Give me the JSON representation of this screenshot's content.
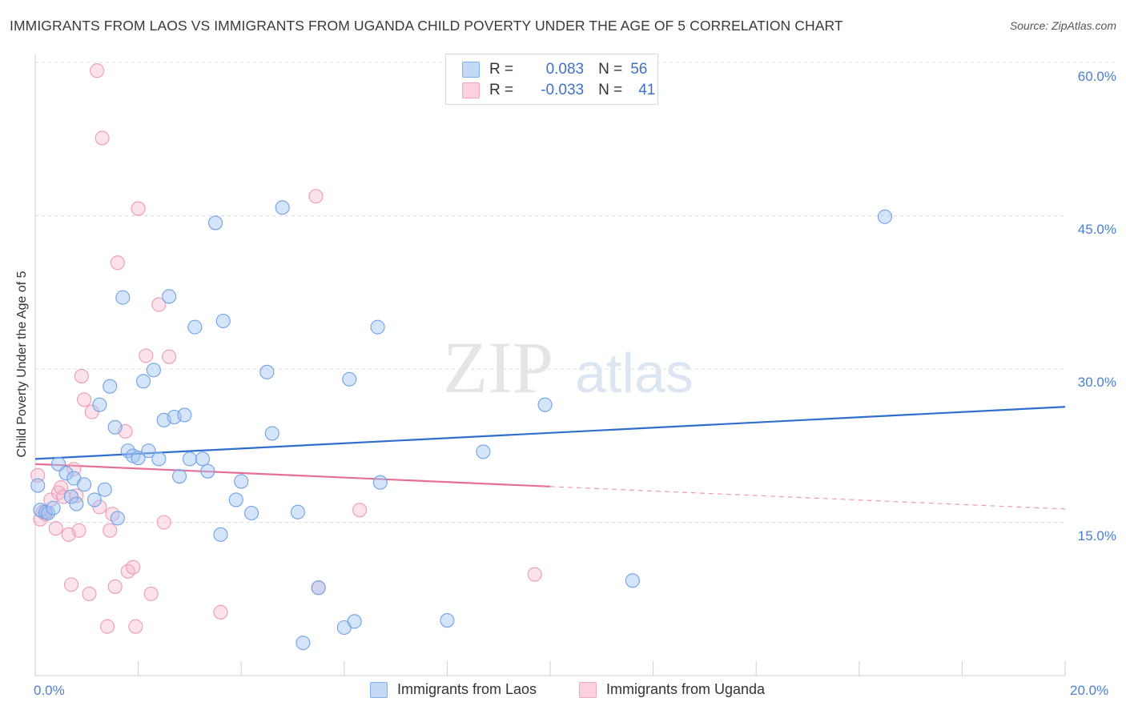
{
  "header": {
    "title": "IMMIGRANTS FROM LAOS VS IMMIGRANTS FROM UGANDA CHILD POVERTY UNDER THE AGE OF 5 CORRELATION CHART",
    "source": "Source: ZipAtlas.com"
  },
  "watermark": {
    "zip": "ZIP",
    "atlas": "atlas"
  },
  "legend": {
    "rows": [
      {
        "r_label": "R =",
        "r_value": "0.083",
        "n_label": "N =",
        "n_value": "56",
        "color": "#7fb0ef"
      },
      {
        "r_label": "R =",
        "r_value": "-0.033",
        "n_label": "N =",
        "n_value": "41",
        "color": "#f4a6bf"
      }
    ]
  },
  "chart_data": {
    "type": "scatter",
    "title": "IMMIGRANTS FROM LAOS VS IMMIGRANTS FROM UGANDA CHILD POVERTY UNDER THE AGE OF 5 CORRELATION CHART",
    "xlabel": "",
    "ylabel": "Child Poverty Under the Age of 5",
    "xlim": [
      0,
      20
    ],
    "ylim": [
      0,
      60
    ],
    "x_tick_labels": [
      "0.0%",
      "20.0%"
    ],
    "y_tick_labels": [
      "15.0%",
      "30.0%",
      "45.0%",
      "60.0%"
    ],
    "y_tick_values": [
      15,
      30,
      45,
      60
    ],
    "grid": "horizontal dashed",
    "legend_position": "bottom",
    "series": [
      {
        "name": "Immigrants from Laos",
        "color": "#7fb0ef",
        "trend": {
          "x": [
            0,
            20
          ],
          "y": [
            21.2,
            26.3
          ],
          "style": "solid"
        },
        "points": [
          [
            0.05,
            18.6
          ],
          [
            0.1,
            16.2
          ],
          [
            0.2,
            16.0
          ],
          [
            0.25,
            15.9
          ],
          [
            0.35,
            16.4
          ],
          [
            0.45,
            20.7
          ],
          [
            0.6,
            19.8
          ],
          [
            0.7,
            17.5
          ],
          [
            0.75,
            19.3
          ],
          [
            0.8,
            16.8
          ],
          [
            0.95,
            18.7
          ],
          [
            1.15,
            17.2
          ],
          [
            1.25,
            26.5
          ],
          [
            1.35,
            18.2
          ],
          [
            1.45,
            28.3
          ],
          [
            1.55,
            24.3
          ],
          [
            1.6,
            15.4
          ],
          [
            1.7,
            37.0
          ],
          [
            1.8,
            22.0
          ],
          [
            1.9,
            21.5
          ],
          [
            2.0,
            21.3
          ],
          [
            2.1,
            28.8
          ],
          [
            2.2,
            22.0
          ],
          [
            2.3,
            29.9
          ],
          [
            2.4,
            21.2
          ],
          [
            2.5,
            25.0
          ],
          [
            2.6,
            37.1
          ],
          [
            2.7,
            25.3
          ],
          [
            2.8,
            19.5
          ],
          [
            2.9,
            25.5
          ],
          [
            3.0,
            21.2
          ],
          [
            3.1,
            34.1
          ],
          [
            3.25,
            21.2
          ],
          [
            3.35,
            20.0
          ],
          [
            3.5,
            44.3
          ],
          [
            3.6,
            13.8
          ],
          [
            3.65,
            34.7
          ],
          [
            3.9,
            17.2
          ],
          [
            4.0,
            19.0
          ],
          [
            4.2,
            15.9
          ],
          [
            4.5,
            29.7
          ],
          [
            4.6,
            23.7
          ],
          [
            4.8,
            45.8
          ],
          [
            5.1,
            16.0
          ],
          [
            5.2,
            3.2
          ],
          [
            5.5,
            8.6
          ],
          [
            6.0,
            4.7
          ],
          [
            6.1,
            29.0
          ],
          [
            6.2,
            5.3
          ],
          [
            6.65,
            34.1
          ],
          [
            6.7,
            18.9
          ],
          [
            8.0,
            5.4
          ],
          [
            8.7,
            21.9
          ],
          [
            9.9,
            26.5
          ],
          [
            11.6,
            9.3
          ],
          [
            16.5,
            44.9
          ]
        ]
      },
      {
        "name": "Immigrants from Uganda",
        "color": "#f4a6bf",
        "trend": {
          "x": [
            0,
            10
          ],
          "y": [
            20.7,
            18.5
          ],
          "style": "solid",
          "dashed_extension": {
            "x": [
              10,
              20
            ],
            "y": [
              18.5,
              16.3
            ]
          }
        },
        "points": [
          [
            0.05,
            19.6
          ],
          [
            0.1,
            15.3
          ],
          [
            0.2,
            15.8
          ],
          [
            0.3,
            17.2
          ],
          [
            0.4,
            14.4
          ],
          [
            0.45,
            17.9
          ],
          [
            0.5,
            18.4
          ],
          [
            0.55,
            17.5
          ],
          [
            0.65,
            13.8
          ],
          [
            0.7,
            8.9
          ],
          [
            0.75,
            20.2
          ],
          [
            0.8,
            17.6
          ],
          [
            0.85,
            14.2
          ],
          [
            0.9,
            29.3
          ],
          [
            0.95,
            27.0
          ],
          [
            1.05,
            8.0
          ],
          [
            1.1,
            25.8
          ],
          [
            1.2,
            59.2
          ],
          [
            1.25,
            16.5
          ],
          [
            1.3,
            52.6
          ],
          [
            1.4,
            4.8
          ],
          [
            1.45,
            14.2
          ],
          [
            1.5,
            15.8
          ],
          [
            1.55,
            8.7
          ],
          [
            1.6,
            40.4
          ],
          [
            1.75,
            23.9
          ],
          [
            1.8,
            10.2
          ],
          [
            1.9,
            10.6
          ],
          [
            1.95,
            4.8
          ],
          [
            2.0,
            45.7
          ],
          [
            2.15,
            31.3
          ],
          [
            2.25,
            8.0
          ],
          [
            2.4,
            36.3
          ],
          [
            2.5,
            15.0
          ],
          [
            2.6,
            31.2
          ],
          [
            3.6,
            6.2
          ],
          [
            5.45,
            46.9
          ],
          [
            5.5,
            8.6
          ],
          [
            6.3,
            16.2
          ],
          [
            9.7,
            9.9
          ],
          [
            0.15,
            16.0
          ]
        ]
      }
    ]
  }
}
